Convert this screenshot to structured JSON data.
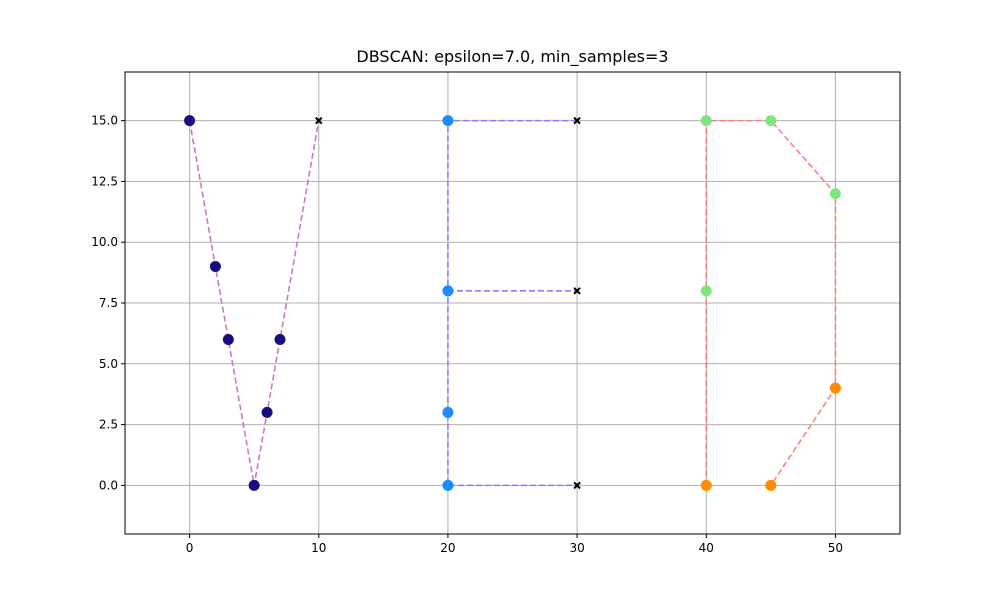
{
  "chart_data": {
    "type": "scatter",
    "title": "DBSCAN: epsilon=7.0, min_samples=3",
    "xlabel": "",
    "ylabel": "",
    "xlim": [
      -5,
      55
    ],
    "ylim": [
      -2,
      17
    ],
    "x_ticks": [
      0,
      10,
      20,
      30,
      40,
      50
    ],
    "y_ticks": [
      0.0,
      2.5,
      5.0,
      7.5,
      10.0,
      12.5,
      15.0
    ],
    "grid": true,
    "paths": [
      {
        "color": "#bf7fbf",
        "points": [
          [
            0,
            15
          ],
          [
            5,
            0
          ],
          [
            10,
            15
          ]
        ]
      },
      {
        "color": "#7f7fff",
        "points": [
          [
            30,
            15
          ],
          [
            20,
            15
          ],
          [
            20,
            0
          ],
          [
            30,
            0
          ]
        ]
      },
      {
        "color": "#7f7fff",
        "points": [
          [
            20,
            8
          ],
          [
            30,
            8
          ]
        ]
      },
      {
        "color": "#ff7f7f",
        "points": [
          [
            40,
            0
          ],
          [
            40,
            15
          ],
          [
            45,
            15
          ],
          [
            50,
            12
          ],
          [
            50,
            4
          ],
          [
            45,
            0
          ]
        ]
      }
    ],
    "clusters": [
      {
        "color": "#1a0b80",
        "points": [
          [
            0,
            15
          ],
          [
            2,
            9
          ],
          [
            3,
            6
          ],
          [
            5,
            0
          ],
          [
            6,
            3
          ],
          [
            7,
            6
          ]
        ]
      },
      {
        "color": "#1a8cff",
        "points": [
          [
            20,
            15
          ],
          [
            20,
            8
          ],
          [
            20,
            3
          ],
          [
            20,
            0
          ]
        ]
      },
      {
        "color": "#7fe67f",
        "points": [
          [
            40,
            15
          ],
          [
            45,
            15
          ],
          [
            50,
            12
          ],
          [
            40,
            8
          ]
        ]
      },
      {
        "color": "#ff8c00",
        "points": [
          [
            50,
            4
          ],
          [
            40,
            0
          ],
          [
            45,
            0
          ]
        ]
      }
    ],
    "noise": {
      "color": "#000000",
      "marker": "x",
      "points": [
        [
          10,
          15
        ],
        [
          30,
          15
        ],
        [
          30,
          8
        ],
        [
          30,
          0
        ]
      ]
    }
  }
}
